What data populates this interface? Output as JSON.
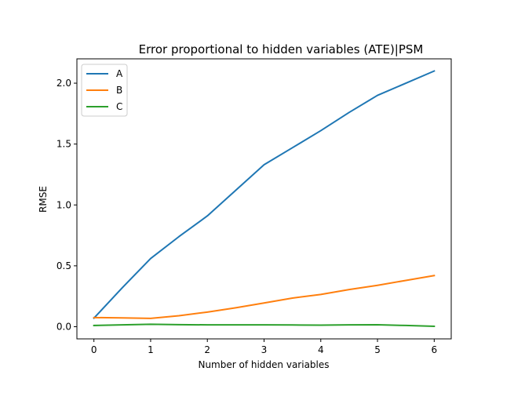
{
  "chart_data": {
    "type": "line",
    "title": "Error proportional to hidden variables (ATE)|PSM",
    "xlabel": "Number of hidden variables",
    "ylabel": "RMSE",
    "xlim": [
      -0.3,
      6.3
    ],
    "ylim": [
      -0.1,
      2.2
    ],
    "xticks": [
      0,
      1,
      2,
      3,
      4,
      5,
      6
    ],
    "yticks": [
      0.0,
      0.5,
      1.0,
      1.5,
      2.0
    ],
    "xtick_labels": [
      "0",
      "1",
      "2",
      "3",
      "4",
      "5",
      "6"
    ],
    "ytick_labels": [
      "0.0",
      "0.5",
      "1.0",
      "1.5",
      "2.0"
    ],
    "grid": false,
    "legend_position": "top-left",
    "x": [
      0,
      0.5,
      1,
      1.5,
      2,
      2.5,
      3,
      3.5,
      4,
      4.5,
      5,
      5.5,
      6
    ],
    "series": [
      {
        "name": "A",
        "color": "#1f77b4",
        "values": [
          0.07,
          0.32,
          0.56,
          0.74,
          0.91,
          1.12,
          1.33,
          1.47,
          1.61,
          1.76,
          1.9,
          2.0,
          2.1
        ]
      },
      {
        "name": "B",
        "color": "#ff7f0e",
        "values": [
          0.075,
          0.072,
          0.068,
          0.09,
          0.12,
          0.155,
          0.195,
          0.235,
          0.265,
          0.305,
          0.34,
          0.38,
          0.42
        ]
      },
      {
        "name": "C",
        "color": "#2ca02c",
        "values": [
          0.01,
          0.015,
          0.02,
          0.017,
          0.015,
          0.015,
          0.015,
          0.014,
          0.013,
          0.015,
          0.016,
          0.01,
          0.003
        ]
      }
    ]
  }
}
